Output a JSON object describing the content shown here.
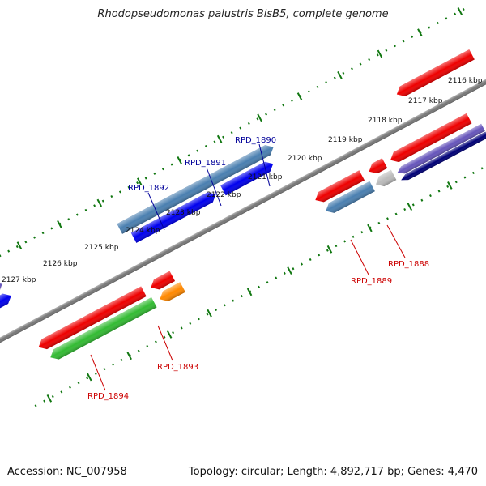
{
  "title": "Rhodopseudomonas palustris BisB5, complete genome",
  "footer": {
    "accession": "Accession: NC_007958",
    "info": "Topology: circular; Length: 4,892,717 bp; Genes: 4,470"
  },
  "kbp_labels": [
    "2116 kbp",
    "2117 kbp",
    "2118 kbp",
    "2119 kbp",
    "2120 kbp",
    "2121 kbp",
    "2122 kbp",
    "2123 kbp",
    "2124 kbp",
    "2125 kbp",
    "2126 kbp",
    "2127 kbp"
  ],
  "gene_labels": [
    {
      "text": "RPD_1890",
      "color": "#000099"
    },
    {
      "text": "RPD_1891",
      "color": "#000099"
    },
    {
      "text": "RPD_1892",
      "color": "#000099"
    },
    {
      "text": "RPD_1888",
      "color": "#cc0000"
    },
    {
      "text": "RPD_1889",
      "color": "#cc0000"
    },
    {
      "text": "RPD_1893",
      "color": "#cc0000"
    },
    {
      "text": "RPD_1894",
      "color": "#cc0000"
    }
  ],
  "colors": {
    "backbone": "#777777",
    "steelblue": "#4a7fb0",
    "blue": "#0000ee",
    "red": "#ee0000",
    "green": "#33bb33",
    "orange": "#ff8800",
    "navy": "#000077",
    "slateblue": "#6655bb",
    "lightgray": "#bbbbbb",
    "tick": "#117711"
  }
}
